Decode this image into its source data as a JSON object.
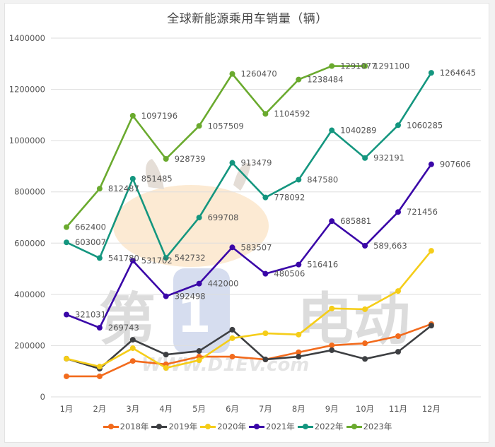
{
  "chart_data": {
    "type": "line",
    "title": "全球新能源乘用车销量（辆）",
    "xlabel": "",
    "ylabel": "",
    "ylim": [
      0,
      1400000
    ],
    "yticks": [
      0,
      200000,
      400000,
      600000,
      800000,
      1000000,
      1200000,
      1400000
    ],
    "ytick_labels": [
      "0",
      "200000",
      "400000",
      "600000",
      "800000",
      "1000000",
      "1200000",
      "1400000"
    ],
    "grid": true,
    "legend_position": "bottom",
    "categories": [
      "1月",
      "2月",
      "3月",
      "4月",
      "5月",
      "6月",
      "7月",
      "8月",
      "9月",
      "10月",
      "11月",
      "12月"
    ],
    "series": [
      {
        "name": "2018年",
        "color": "#f26b1d",
        "values": [
          80000,
          80000,
          140000,
          127000,
          157000,
          157000,
          146000,
          174000,
          201000,
          209000,
          237000,
          284000
        ],
        "labels": null
      },
      {
        "name": "2019年",
        "color": "#3d3f42",
        "values": [
          149000,
          110000,
          223000,
          165000,
          179000,
          262000,
          146000,
          157000,
          182000,
          148000,
          176000,
          278000
        ],
        "labels": null
      },
      {
        "name": "2020年",
        "color": "#f5cd19",
        "values": [
          149000,
          118000,
          190000,
          113000,
          143000,
          229000,
          248000,
          243000,
          345000,
          342000,
          413000,
          570000
        ],
        "labels": null
      },
      {
        "name": "2021年",
        "color": "#3a07a8",
        "values": [
          321031,
          269743,
          531702,
          392498,
          442000,
          583507,
          480506,
          516416,
          685881,
          589663,
          721456,
          907606
        ],
        "labels": [
          "321031",
          "269743",
          "531702",
          "392498",
          "442000",
          "583507",
          "480506",
          "516416",
          "685881",
          "589,663",
          "721456",
          "907606"
        ]
      },
      {
        "name": "2022年",
        "color": "#14967f",
        "values": [
          603007,
          541780,
          851485,
          542732,
          699708,
          913479,
          778092,
          847580,
          1040289,
          932191,
          1060285,
          1264645
        ],
        "labels": [
          "603007",
          "541780",
          "851485",
          "542732",
          "699708",
          "913479",
          "778092",
          "847580",
          "1040289",
          "932191",
          "1060285",
          "1264645"
        ]
      },
      {
        "name": "2023年",
        "color": "#6aaa2e",
        "values": [
          662400,
          812487,
          1097196,
          928739,
          1057509,
          1260470,
          1104592,
          1238484,
          1291077,
          1291100
        ],
        "labels": [
          "662400",
          "812487",
          "1097196",
          "928739",
          "1057509",
          "1260470",
          "1104592",
          "1238484",
          "1291077",
          "1291100"
        ]
      }
    ],
    "watermark": "第1电动 WWW.D1EV.com"
  }
}
